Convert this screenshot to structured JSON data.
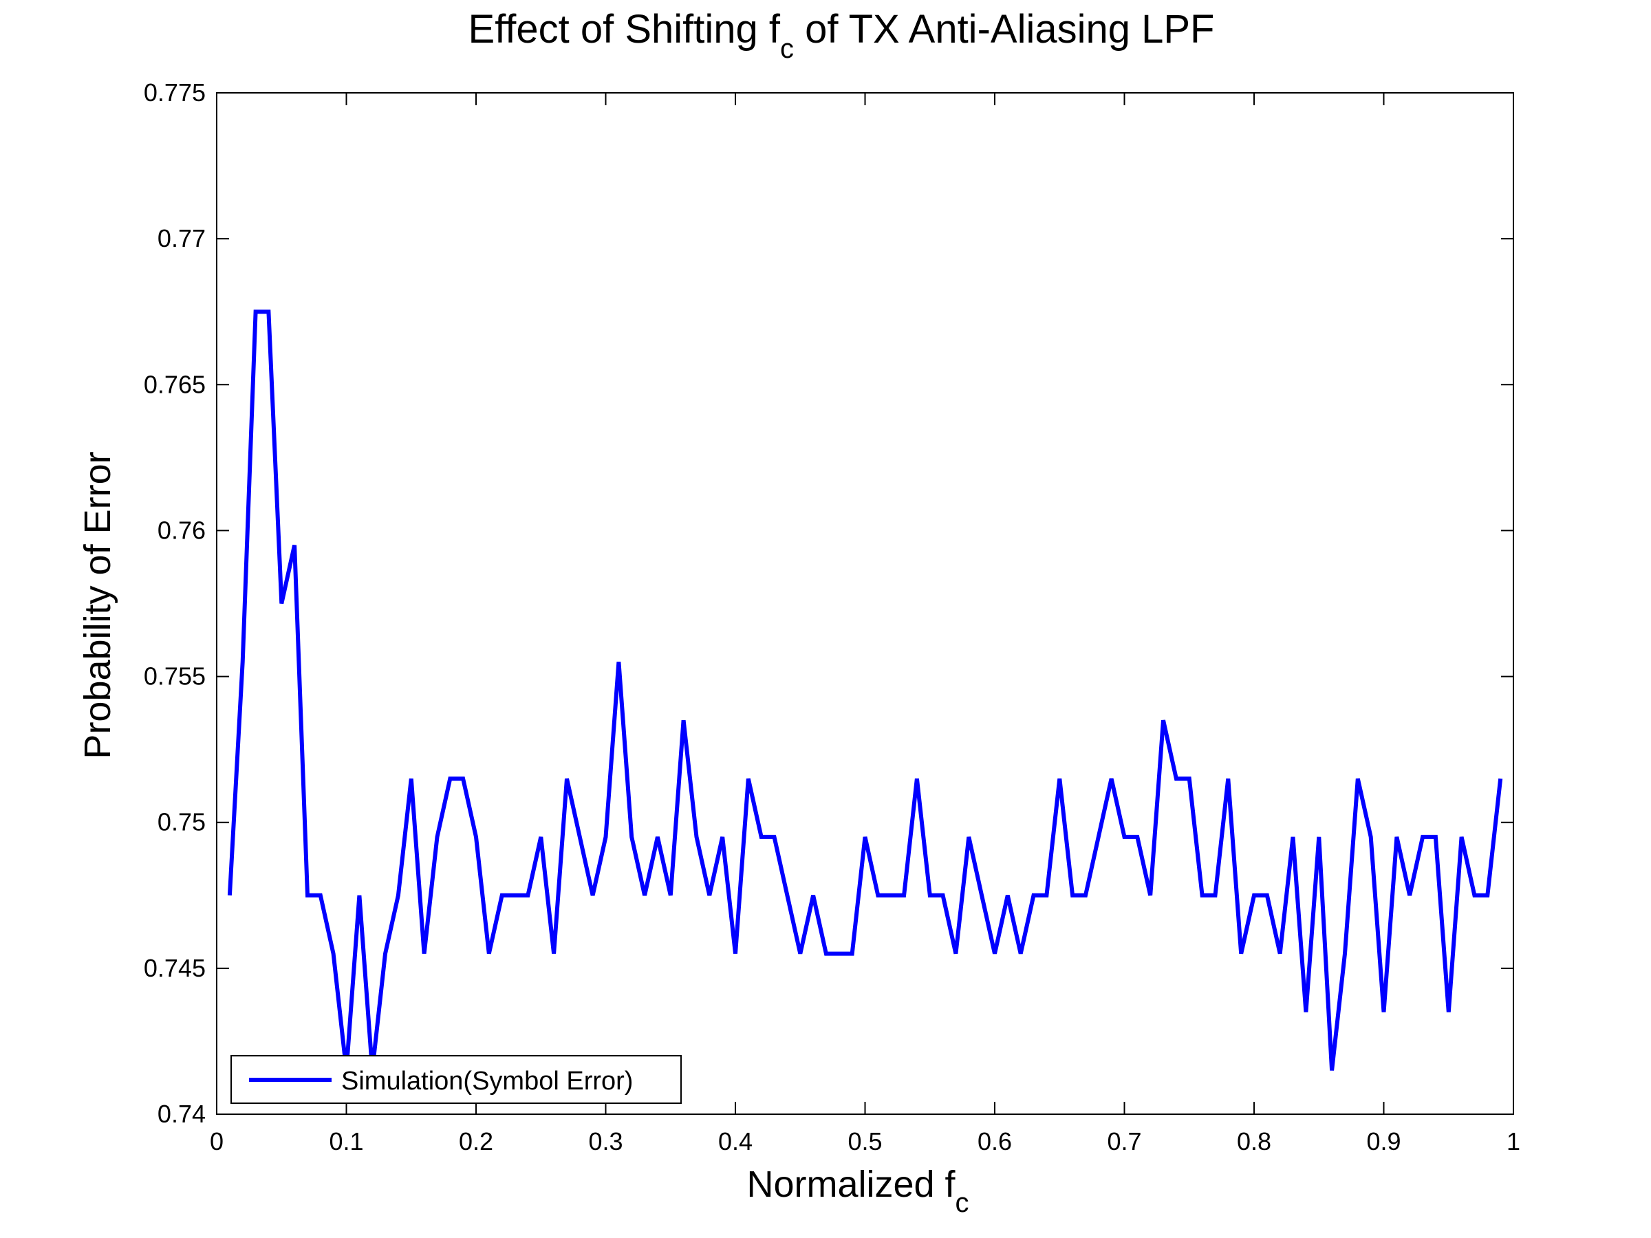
{
  "chart_data": {
    "type": "line",
    "title": {
      "main": "Effect of Shifting f",
      "sub": "c",
      "rest": " of TX Anti-Aliasing LPF"
    },
    "xlabel": {
      "main": "Normalized f",
      "sub": "c"
    },
    "ylabel": "Probability of Error",
    "xlim": [
      0,
      1
    ],
    "ylim": [
      0.74,
      0.775
    ],
    "xticks": [
      0,
      0.1,
      0.2,
      0.3,
      0.4,
      0.5,
      0.6,
      0.7,
      0.8,
      0.9,
      1
    ],
    "xtick_labels": [
      "0",
      "0.1",
      "0.2",
      "0.3",
      "0.4",
      "0.5",
      "0.6",
      "0.7",
      "0.8",
      "0.9",
      "1"
    ],
    "yticks": [
      0.74,
      0.745,
      0.75,
      0.755,
      0.76,
      0.765,
      0.77,
      0.775
    ],
    "ytick_labels": [
      "0.74",
      "0.745",
      "0.75",
      "0.755",
      "0.76",
      "0.765",
      "0.77",
      "0.775"
    ],
    "grid": false,
    "legend_position": "bottom-left",
    "series": [
      {
        "name": "Simulation(Symbol Error)",
        "color": "#0000ff",
        "x": [
          0.01,
          0.02,
          0.03,
          0.04,
          0.05,
          0.06,
          0.07,
          0.08,
          0.09,
          0.1,
          0.11,
          0.12,
          0.13,
          0.14,
          0.15,
          0.16,
          0.17,
          0.18,
          0.19,
          0.2,
          0.21,
          0.22,
          0.23,
          0.24,
          0.25,
          0.26,
          0.27,
          0.28,
          0.29,
          0.3,
          0.31,
          0.32,
          0.33,
          0.34,
          0.35,
          0.36,
          0.37,
          0.38,
          0.39,
          0.4,
          0.41,
          0.42,
          0.43,
          0.44,
          0.45,
          0.46,
          0.47,
          0.48,
          0.49,
          0.5,
          0.51,
          0.52,
          0.53,
          0.54,
          0.55,
          0.56,
          0.57,
          0.58,
          0.59,
          0.6,
          0.61,
          0.62,
          0.63,
          0.64,
          0.65,
          0.66,
          0.67,
          0.68,
          0.69,
          0.7,
          0.71,
          0.72,
          0.73,
          0.74,
          0.75,
          0.76,
          0.77,
          0.78,
          0.79,
          0.8,
          0.81,
          0.82,
          0.83,
          0.84,
          0.85,
          0.86,
          0.87,
          0.88,
          0.89,
          0.9,
          0.91,
          0.92,
          0.93,
          0.94,
          0.95,
          0.96,
          0.97,
          0.98,
          0.99
        ],
        "y": [
          0.7475,
          0.7555,
          0.7675,
          0.7675,
          0.7575,
          0.7595,
          0.7475,
          0.7475,
          0.7455,
          0.7415,
          0.7475,
          0.7415,
          0.7455,
          0.7475,
          0.7515,
          0.7455,
          0.7495,
          0.7515,
          0.7515,
          0.7495,
          0.7455,
          0.7475,
          0.7475,
          0.7475,
          0.7495,
          0.7455,
          0.7515,
          0.7495,
          0.7475,
          0.7495,
          0.7555,
          0.7495,
          0.7475,
          0.7495,
          0.7475,
          0.7535,
          0.7495,
          0.7475,
          0.7495,
          0.7455,
          0.7515,
          0.7495,
          0.7495,
          0.7475,
          0.7455,
          0.7475,
          0.7455,
          0.7455,
          0.7455,
          0.7495,
          0.7475,
          0.7475,
          0.7475,
          0.7515,
          0.7475,
          0.7475,
          0.7455,
          0.7495,
          0.7475,
          0.7455,
          0.7475,
          0.7455,
          0.7475,
          0.7475,
          0.7515,
          0.7475,
          0.7475,
          0.7495,
          0.7515,
          0.7495,
          0.7495,
          0.7475,
          0.7535,
          0.7515,
          0.7515,
          0.7475,
          0.7475,
          0.7515,
          0.7455,
          0.7475,
          0.7475,
          0.7455,
          0.7495,
          0.7435,
          0.7495,
          0.7415,
          0.7455,
          0.7515,
          0.7495,
          0.7435,
          0.7495,
          0.7475,
          0.7495,
          0.7495,
          0.7435,
          0.7495,
          0.7475,
          0.7475,
          0.7515
        ]
      }
    ]
  }
}
